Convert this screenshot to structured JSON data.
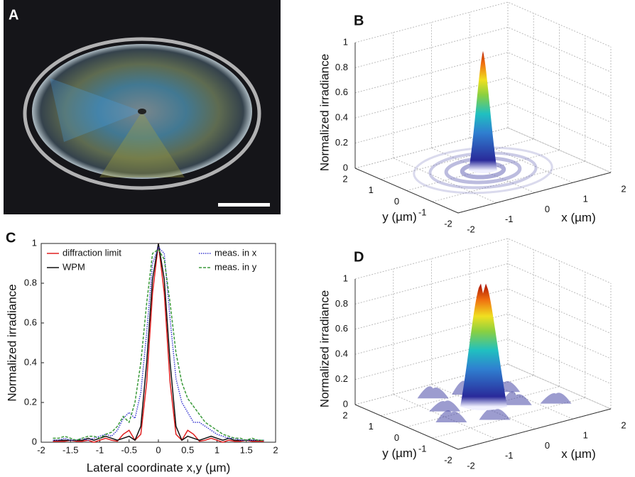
{
  "image_panel": {
    "label": "A"
  },
  "chart_data": [
    {
      "type": "surface",
      "panel": "B",
      "zlabel": "Normalized irradiance",
      "xlabel": "x (µm)",
      "ylabel": "y (µm)",
      "xlim": [
        -2,
        2
      ],
      "ylim": [
        -2,
        2
      ],
      "zlim": [
        0,
        1
      ],
      "xticks": [
        -2,
        -1,
        0,
        1,
        2
      ],
      "yticks": [
        -2,
        -1,
        0,
        1,
        2
      ],
      "zticks": [
        0,
        0.2,
        0.4,
        0.6,
        0.8,
        1
      ],
      "peak": 0.95,
      "rings": true
    },
    {
      "type": "line",
      "panel": "C",
      "xlabel": "Lateral coordinate x,y (µm)",
      "ylabel": "Normalized irradiance",
      "xlim": [
        -2,
        2
      ],
      "ylim": [
        0,
        1
      ],
      "xticks": [
        -2,
        -1.5,
        -1,
        -0.5,
        0,
        0.5,
        1,
        1.5,
        2
      ],
      "yticks": [
        0,
        0.2,
        0.4,
        0.6,
        0.8,
        1
      ],
      "x": [
        -1.8,
        -1.7,
        -1.6,
        -1.5,
        -1.4,
        -1.3,
        -1.2,
        -1.1,
        -1.0,
        -0.9,
        -0.8,
        -0.7,
        -0.6,
        -0.5,
        -0.4,
        -0.3,
        -0.2,
        -0.1,
        0,
        0.1,
        0.2,
        0.3,
        0.4,
        0.5,
        0.6,
        0.7,
        0.8,
        0.9,
        1.0,
        1.1,
        1.2,
        1.3,
        1.4,
        1.5,
        1.6,
        1.7,
        1.8
      ],
      "series": [
        {
          "name": "diffraction limit",
          "color": "#e02020",
          "style": "solid",
          "values": [
            0.005,
            0.005,
            0.005,
            0.01,
            0.005,
            0.005,
            0.01,
            0,
            0.01,
            0.02,
            0.01,
            0.005,
            0.04,
            0.06,
            0.01,
            0.04,
            0.3,
            0.75,
            1,
            0.75,
            0.3,
            0.04,
            0.01,
            0.06,
            0.04,
            0.005,
            0.01,
            0.02,
            0.01,
            0,
            0.01,
            0.005,
            0.005,
            0.01,
            0.005,
            0.005,
            0.005
          ]
        },
        {
          "name": "WPM",
          "color": "#111111",
          "style": "solid",
          "values": [
            0.01,
            0.01,
            0.01,
            0.01,
            0.01,
            0.01,
            0.02,
            0.01,
            0.02,
            0.03,
            0.02,
            0.01,
            0.02,
            0.03,
            0.01,
            0.08,
            0.4,
            0.82,
            1,
            0.82,
            0.4,
            0.08,
            0.01,
            0.03,
            0.02,
            0.01,
            0.02,
            0.03,
            0.02,
            0.01,
            0.02,
            0.01,
            0.01,
            0.01,
            0.01,
            0.01,
            0.01
          ]
        },
        {
          "name": "meas. in x",
          "color": "#3a3ad0",
          "style": "dotted",
          "values": [
            0.01,
            0.01,
            0.02,
            0.01,
            0.01,
            0.02,
            0.01,
            0.02,
            0.03,
            0.04,
            0.03,
            0.06,
            0.12,
            0.15,
            0.12,
            0.25,
            0.55,
            0.9,
            0.98,
            0.95,
            0.62,
            0.32,
            0.2,
            0.15,
            0.1,
            0.1,
            0.08,
            0.06,
            0.04,
            0.03,
            0.02,
            0.02,
            0.01,
            0.01,
            0.01,
            0.01,
            0.01
          ]
        },
        {
          "name": "meas. in y",
          "color": "#3a9a3a",
          "style": "dashed",
          "values": [
            0.02,
            0.02,
            0.03,
            0.02,
            0.01,
            0.02,
            0.03,
            0.03,
            0.02,
            0.04,
            0.05,
            0.08,
            0.13,
            0.1,
            0.2,
            0.4,
            0.7,
            0.95,
            0.97,
            0.92,
            0.7,
            0.45,
            0.3,
            0.22,
            0.18,
            0.14,
            0.1,
            0.08,
            0.06,
            0.04,
            0.03,
            0.02,
            0.02,
            0.01,
            0.02,
            0.01,
            0.01
          ]
        }
      ]
    },
    {
      "type": "surface",
      "panel": "D",
      "zlabel": "Normalized irradiance",
      "xlabel": "x (µm)",
      "ylabel": "y (µm)",
      "xlim": [
        -2,
        2
      ],
      "ylim": [
        -2,
        2
      ],
      "zlim": [
        0,
        1
      ],
      "xticks": [
        -2,
        -1,
        0,
        1,
        2
      ],
      "yticks": [
        -2,
        -1,
        0,
        1,
        2
      ],
      "zticks": [
        0,
        0.2,
        0.4,
        0.6,
        0.8,
        1
      ],
      "peak": 0.98,
      "rings": false
    }
  ]
}
